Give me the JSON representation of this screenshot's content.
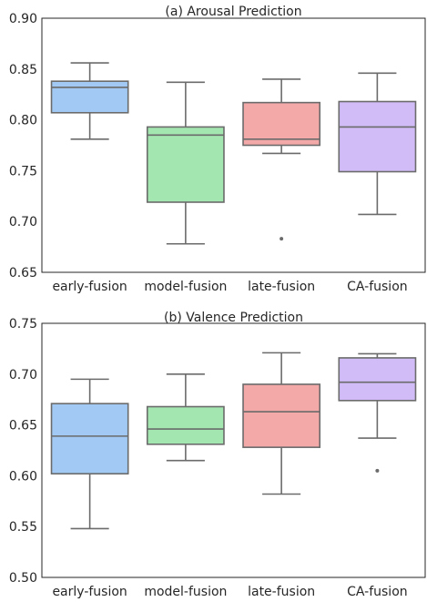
{
  "chart_data": [
    {
      "type": "box",
      "title": "(a) Arousal Prediction",
      "xlabel": "",
      "ylabel": "",
      "ylim": [
        0.65,
        0.9
      ],
      "yticks": [
        "0.65",
        "0.70",
        "0.75",
        "0.80",
        "0.85",
        "0.90"
      ],
      "ytick_values": [
        0.65,
        0.7,
        0.75,
        0.8,
        0.85,
        0.9
      ],
      "grid": false,
      "categories": [
        "early-fusion",
        "model-fusion",
        "late-fusion",
        "CA-fusion"
      ],
      "colors": [
        "#a1c9f4",
        "#a3e6b0",
        "#f3a9a8",
        "#d1bcf8"
      ],
      "boxes": [
        {
          "whislo": 0.781,
          "q1": 0.807,
          "med": 0.832,
          "q3": 0.838,
          "whishi": 0.856,
          "fliers": []
        },
        {
          "whislo": 0.678,
          "q1": 0.719,
          "med": 0.785,
          "q3": 0.793,
          "whishi": 0.837,
          "fliers": []
        },
        {
          "whislo": 0.767,
          "q1": 0.775,
          "med": 0.781,
          "q3": 0.817,
          "whishi": 0.84,
          "fliers": [
            0.683
          ]
        },
        {
          "whislo": 0.707,
          "q1": 0.749,
          "med": 0.793,
          "q3": 0.818,
          "whishi": 0.846,
          "fliers": []
        }
      ]
    },
    {
      "type": "box",
      "title": "(b) Valence Prediction",
      "xlabel": "",
      "ylabel": "",
      "ylim": [
        0.5,
        0.75
      ],
      "yticks": [
        "0.50",
        "0.55",
        "0.60",
        "0.65",
        "0.70",
        "0.75"
      ],
      "ytick_values": [
        0.5,
        0.55,
        0.6,
        0.65,
        0.7,
        0.75
      ],
      "grid": false,
      "categories": [
        "early-fusion",
        "model-fusion",
        "late-fusion",
        "CA-fusion"
      ],
      "colors": [
        "#a1c9f4",
        "#a3e6b0",
        "#f3a9a8",
        "#d1bcf8"
      ],
      "boxes": [
        {
          "whislo": 0.548,
          "q1": 0.602,
          "med": 0.639,
          "q3": 0.671,
          "whishi": 0.695,
          "fliers": []
        },
        {
          "whislo": 0.615,
          "q1": 0.631,
          "med": 0.646,
          "q3": 0.668,
          "whishi": 0.7,
          "fliers": []
        },
        {
          "whislo": 0.582,
          "q1": 0.628,
          "med": 0.663,
          "q3": 0.69,
          "whishi": 0.721,
          "fliers": []
        },
        {
          "whislo": 0.637,
          "q1": 0.674,
          "med": 0.692,
          "q3": 0.716,
          "whishi": 0.72,
          "fliers": [
            0.605
          ]
        }
      ]
    }
  ]
}
